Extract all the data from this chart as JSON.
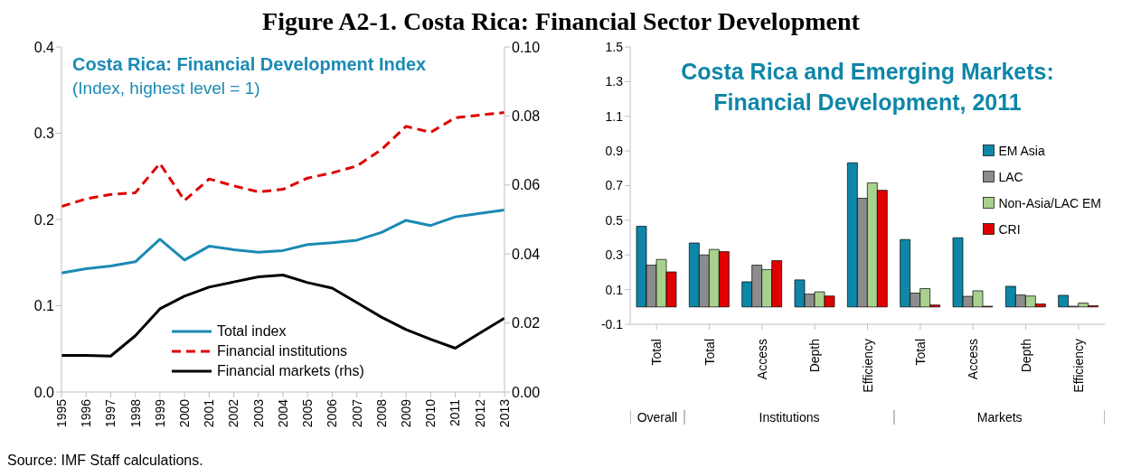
{
  "chart_data": [
    {
      "type": "line",
      "title": "Costa Rica: Financial Development Index",
      "subtitle": "(Index, highest level = 1)",
      "annotations": [
        "Figure A2-1. Costa Rica: Financial Sector Development",
        "Source: IMF Staff calculations."
      ],
      "categories": [
        "1995",
        "1996",
        "1997",
        "1998",
        "1999",
        "2000",
        "2001",
        "2002",
        "2003",
        "2004",
        "2005",
        "2006",
        "2007",
        "2008",
        "2009",
        "2010",
        "2011",
        "2012",
        "2013"
      ],
      "series": [
        {
          "name": "Total index",
          "color": "#1a8ab4",
          "line_style": "solid",
          "values": [
            0.138,
            0.143,
            0.146,
            0.151,
            0.177,
            0.153,
            0.169,
            0.165,
            0.162,
            0.164,
            0.171,
            0.173,
            0.176,
            0.185,
            0.199,
            0.193,
            0.203,
            0.207,
            0.211
          ]
        },
        {
          "name": "Financial institutions",
          "color": "#e00000",
          "line_style": "dashed",
          "values": [
            0.215,
            0.224,
            0.229,
            0.231,
            0.265,
            0.222,
            0.247,
            0.239,
            0.232,
            0.235,
            0.248,
            0.254,
            0.262,
            0.281,
            0.308,
            0.301,
            0.318,
            0.321,
            0.324
          ]
        },
        {
          "name": "Financial markets (rhs)",
          "color": "#000000",
          "line_style": "solid",
          "axis": "y2",
          "values": [
            0.0106,
            0.0106,
            0.0104,
            0.0163,
            0.0241,
            0.0278,
            0.0304,
            0.0319,
            0.0334,
            0.0339,
            0.0317,
            0.0301,
            0.0259,
            0.0217,
            0.0181,
            0.0153,
            0.0127,
            0.0171,
            0.0214
          ]
        }
      ],
      "ylim": [
        0,
        0.4
      ],
      "yticks": [
        {
          "value": 0,
          "label": "0.0"
        },
        0.1,
        0.2,
        0.3,
        0.4
      ],
      "y2lim": [
        0,
        0.1
      ],
      "y2ticks": [
        {
          "value": 0,
          "label": "0.00"
        },
        {
          "value": 0.02,
          "label": "0.02"
        },
        {
          "value": 0.04,
          "label": "0.04"
        },
        {
          "value": 0.06,
          "label": "0.06"
        },
        {
          "value": 0.08,
          "label": "0.08"
        },
        {
          "value": 0.1,
          "label": "0.10"
        }
      ],
      "legend": "bottom",
      "grid": false
    },
    {
      "type": "bar",
      "title": "Costa Rica and Emerging Markets: Financial Development, 2011",
      "annotations": [
        "Overall",
        "Institutions",
        "Markets"
      ],
      "categories": [
        "Total",
        "Total",
        "Access",
        "Depth",
        "Efficiency",
        "Total",
        "Access",
        "Depth",
        "Efficiency"
      ],
      "series": [
        {
          "name": "EM Asia",
          "color": "#0e86a8",
          "values": [
            0.465,
            0.369,
            0.145,
            0.156,
            0.832,
            0.389,
            0.399,
            0.119,
            0.067
          ]
        },
        {
          "name": "LAC",
          "color": "#8c8c8c",
          "values": [
            0.241,
            0.3,
            0.241,
            0.074,
            0.627,
            0.08,
            0.061,
            0.069,
            0.004
          ]
        },
        {
          "name": "Non-Asia/LAC EM",
          "color": "#a9d18e",
          "values": [
            0.274,
            0.332,
            0.215,
            0.087,
            0.716,
            0.106,
            0.093,
            0.063,
            0.022
          ]
        },
        {
          "name": "CRI",
          "color": "#e00000",
          "values": [
            0.202,
            0.319,
            0.267,
            0.063,
            0.673,
            0.011,
            0.004,
            0.017,
            0.007
          ]
        }
      ],
      "ylim": [
        -0.1,
        1.5
      ],
      "yticks": [
        -0.1,
        0.1,
        0.3,
        0.5,
        0.7,
        0.9,
        1.1,
        1.3,
        1.5
      ],
      "legend": "right",
      "grid": false
    }
  ]
}
